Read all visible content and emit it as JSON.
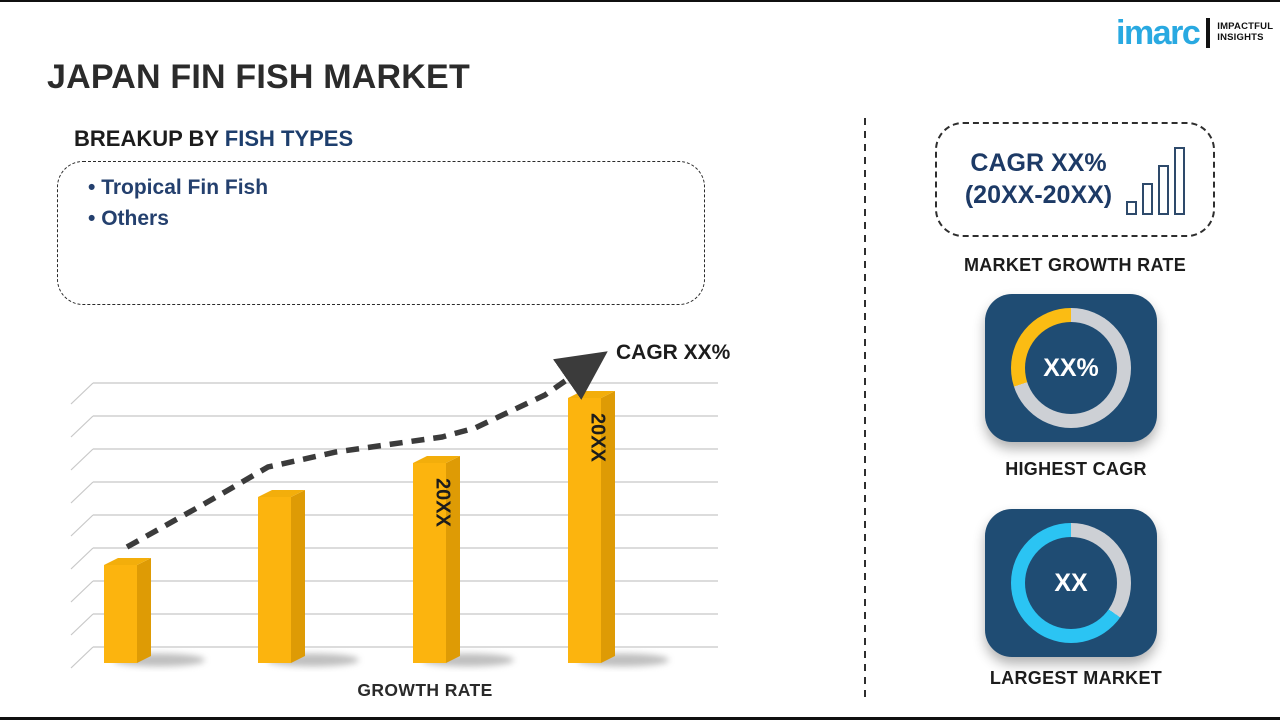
{
  "logo": {
    "brand": "imarc",
    "tagline_line1": "IMPACTFUL",
    "tagline_line2": "INSIGHTS"
  },
  "title": "JAPAN FIN FISH MARKET",
  "breakup": {
    "heading_prefix": "BREAKUP BY ",
    "heading_accent": "FISH TYPES",
    "items": [
      "Tropical Fin Fish",
      "Others"
    ]
  },
  "chart_data": {
    "type": "bar",
    "title": "",
    "categories": [
      "",
      "",
      "20XX",
      "20XX"
    ],
    "values": [
      98,
      166,
      200,
      265
    ],
    "values_note": "relative bar heights (no numeric axis shown in source)",
    "xlabel": "GROWTH RATE",
    "trend_label": "CAGR XX%",
    "grid": true,
    "legend": "none",
    "bar_color_front": "#FCB40E",
    "bar_color_side": "#DE9B05",
    "bar_color_top": "#F3AE0B",
    "trend_color": "#3b3b3b",
    "grid_color": "#c8c8c8"
  },
  "right_panel": {
    "cagr_box": {
      "line1": "CAGR XX%",
      "line2": "(20XX-20XX)"
    },
    "market_growth_rate_label": "MARKET GROWTH RATE",
    "highest_cagr": {
      "value": "XX%",
      "label": "HIGHEST CAGR",
      "accent_color": "#FBBC13",
      "track_color": "#CDD0D5",
      "accent_from_deg": 252,
      "accent_to_deg": 360
    },
    "largest_market": {
      "value": "XX",
      "label": "LARGEST MARKET",
      "accent_color": "#2BC4F3",
      "track_color": "#CDD0D5",
      "accent_from_deg": 125,
      "accent_to_deg": 360
    }
  }
}
